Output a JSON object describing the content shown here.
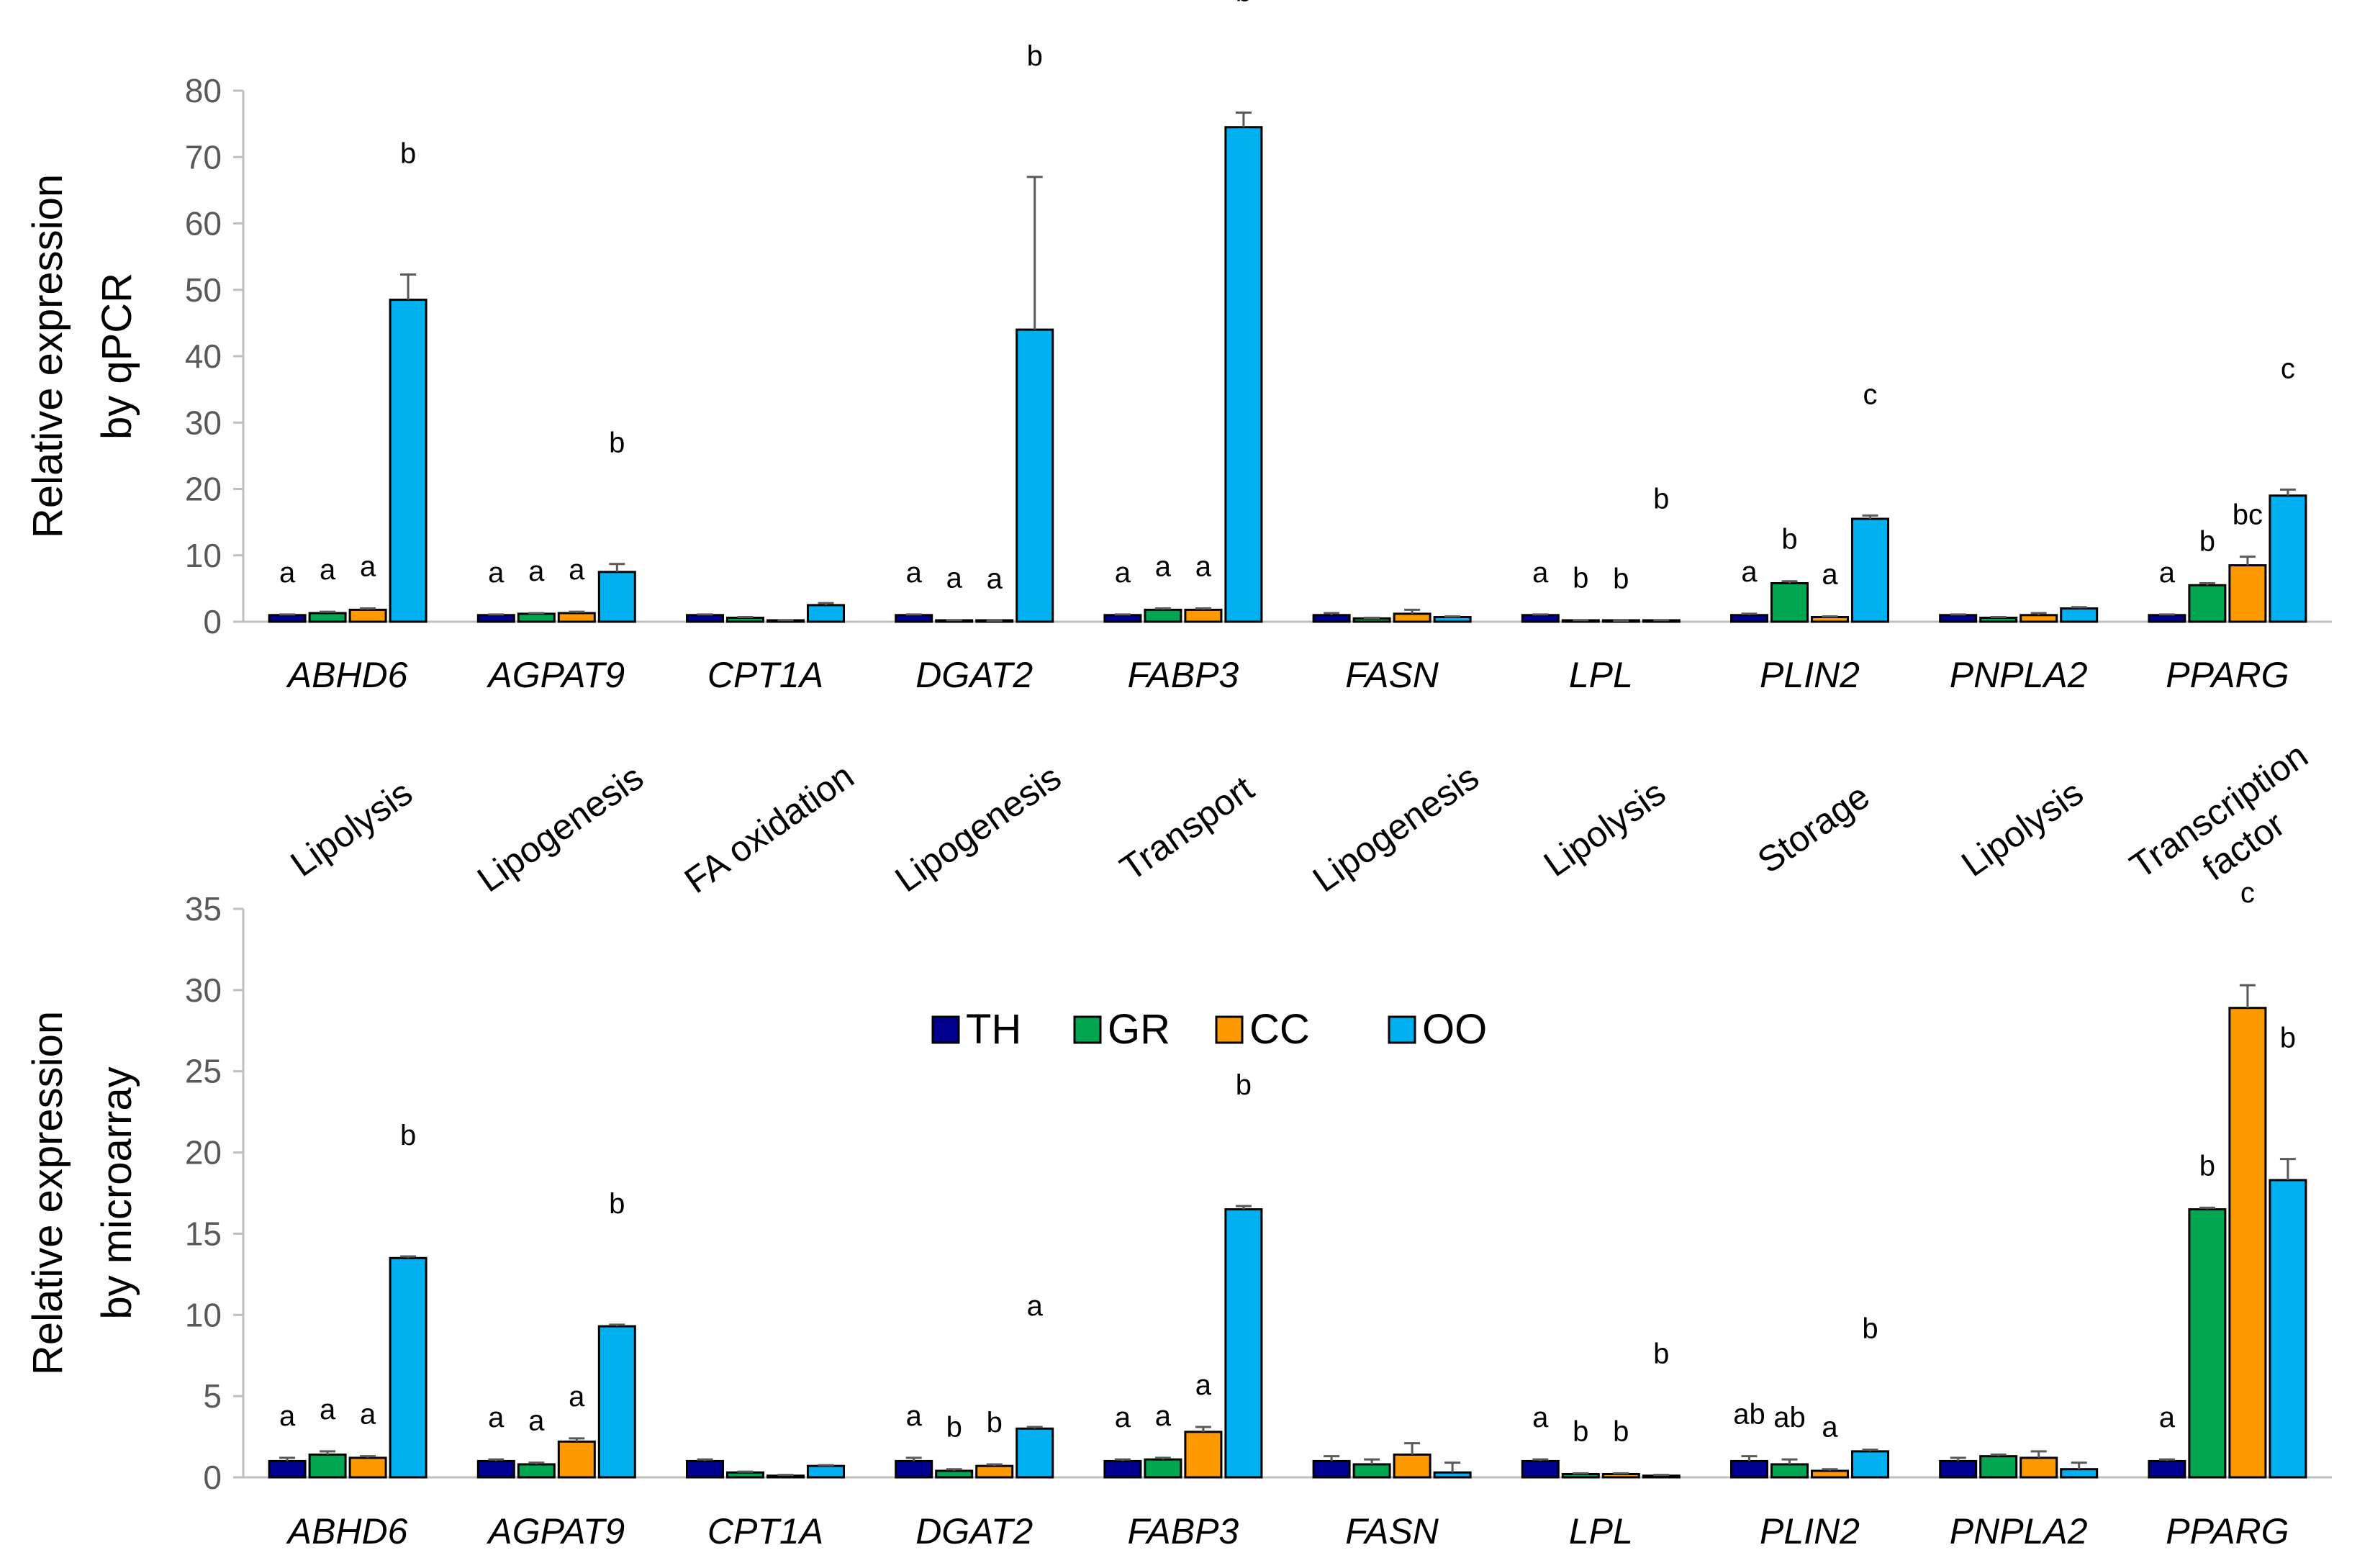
{
  "chart_data": [
    {
      "type": "bar",
      "name": "qpcr",
      "ylabel_lines": [
        "Relative expression",
        "by qPCR"
      ],
      "ylim": [
        0,
        80
      ],
      "yticks": [
        "0",
        "10",
        "20",
        "30",
        "40",
        "50",
        "60",
        "70",
        "80"
      ],
      "categories": [
        "ABHD6",
        "AGPAT9",
        "CPT1A",
        "DGAT2",
        "FABP3",
        "FASN",
        "LPL",
        "PLIN2",
        "PNPLA2",
        "PPARG"
      ],
      "series": [
        {
          "name": "TH",
          "values": [
            1.0,
            1.0,
            1.0,
            1.0,
            1.0,
            1.0,
            1.0,
            1.0,
            1.0,
            1.0
          ],
          "errors": [
            0.1,
            0.1,
            0.1,
            0.1,
            0.1,
            0.3,
            0.1,
            0.2,
            0.1,
            0.1
          ]
        },
        {
          "name": "GR",
          "values": [
            1.3,
            1.2,
            0.6,
            0.2,
            1.8,
            0.5,
            0.2,
            5.8,
            0.6,
            5.5
          ],
          "errors": [
            0.2,
            0.1,
            0.1,
            0.05,
            0.2,
            0.1,
            0.05,
            0.3,
            0.1,
            0.3
          ]
        },
        {
          "name": "CC",
          "values": [
            1.8,
            1.3,
            0.2,
            0.1,
            1.8,
            1.2,
            0.1,
            0.7,
            1.0,
            8.5
          ],
          "errors": [
            0.2,
            0.2,
            0.05,
            0.05,
            0.2,
            0.6,
            0.05,
            0.1,
            0.3,
            1.3
          ]
        },
        {
          "name": "OO",
          "values": [
            48.5,
            7.5,
            2.5,
            44.0,
            74.5,
            0.7,
            0.2,
            15.5,
            2.0,
            19.0
          ],
          "errors": [
            3.8,
            1.2,
            0.3,
            23.0,
            2.2,
            0.1,
            0.05,
            0.5,
            0.2,
            0.9
          ]
        }
      ],
      "annotations": [
        [
          "a",
          "a",
          "a",
          "b"
        ],
        [
          "a",
          "a",
          "a",
          "b"
        ],
        [
          "",
          "",
          "",
          ""
        ],
        [
          "a",
          "a",
          "a",
          "b"
        ],
        [
          "a",
          "a",
          "a",
          "b"
        ],
        [
          "",
          "",
          "",
          ""
        ],
        [
          "a",
          "b",
          "b",
          "b"
        ],
        [
          "a",
          "b",
          "a",
          "c"
        ],
        [
          "",
          "",
          "",
          ""
        ],
        [
          "a",
          "b",
          "bc",
          "c"
        ]
      ]
    },
    {
      "type": "bar",
      "name": "microarray",
      "ylabel_lines": [
        "Relative expression",
        "by microarray"
      ],
      "ylim": [
        0,
        35
      ],
      "yticks": [
        "0",
        "5",
        "10",
        "15",
        "20",
        "25",
        "30",
        "35"
      ],
      "categories": [
        "ABHD6",
        "AGPAT9",
        "CPT1A",
        "DGAT2",
        "FABP3",
        "FASN",
        "LPL",
        "PLIN2",
        "PNPLA2",
        "PPARG"
      ],
      "series": [
        {
          "name": "TH",
          "values": [
            1.0,
            1.0,
            1.0,
            1.0,
            1.0,
            1.0,
            1.0,
            1.0,
            1.0,
            1.0
          ],
          "errors": [
            0.2,
            0.1,
            0.1,
            0.2,
            0.1,
            0.3,
            0.1,
            0.3,
            0.2,
            0.1
          ]
        },
        {
          "name": "GR",
          "values": [
            1.4,
            0.8,
            0.3,
            0.4,
            1.1,
            0.8,
            0.2,
            0.8,
            1.3,
            16.5
          ],
          "errors": [
            0.2,
            0.1,
            0.05,
            0.1,
            0.1,
            0.3,
            0.05,
            0.3,
            0.1,
            0.1
          ]
        },
        {
          "name": "CC",
          "values": [
            1.2,
            2.2,
            0.1,
            0.7,
            2.8,
            1.4,
            0.2,
            0.4,
            1.2,
            28.9
          ],
          "errors": [
            0.1,
            0.2,
            0.05,
            0.1,
            0.3,
            0.7,
            0.05,
            0.1,
            0.4,
            1.4
          ]
        },
        {
          "name": "OO",
          "values": [
            13.5,
            9.3,
            0.7,
            3.0,
            16.5,
            0.3,
            0.1,
            1.6,
            0.5,
            18.3
          ],
          "errors": [
            0.1,
            0.1,
            0.05,
            0.1,
            0.2,
            0.6,
            0.05,
            0.1,
            0.4,
            1.3
          ]
        }
      ],
      "annotations": [
        [
          "a",
          "a",
          "a",
          "b"
        ],
        [
          "a",
          "a",
          "a",
          "b"
        ],
        [
          "",
          "",
          "",
          ""
        ],
        [
          "a",
          "b",
          "b",
          "a"
        ],
        [
          "a",
          "a",
          "a",
          "b"
        ],
        [
          "",
          "",
          "",
          ""
        ],
        [
          "a",
          "b",
          "b",
          "b"
        ],
        [
          "ab",
          "ab",
          "a",
          "b"
        ],
        [
          "",
          "",
          "",
          ""
        ],
        [
          "a",
          "b",
          "c",
          "b"
        ]
      ]
    }
  ],
  "functions": [
    "Lipolysis",
    "Lipogenesis",
    "FA oxidation",
    "Lipogenesis",
    "Transport",
    "Lipogenesis",
    "Lipolysis",
    "Storage",
    "Lipolysis",
    "Transcription factor"
  ],
  "legend": {
    "items": [
      {
        "label": "TH",
        "color": "#000090"
      },
      {
        "label": "GR",
        "color": "#00A650"
      },
      {
        "label": "CC",
        "color": "#FF9900"
      },
      {
        "label": "OO",
        "color": "#00B0F0"
      }
    ]
  }
}
